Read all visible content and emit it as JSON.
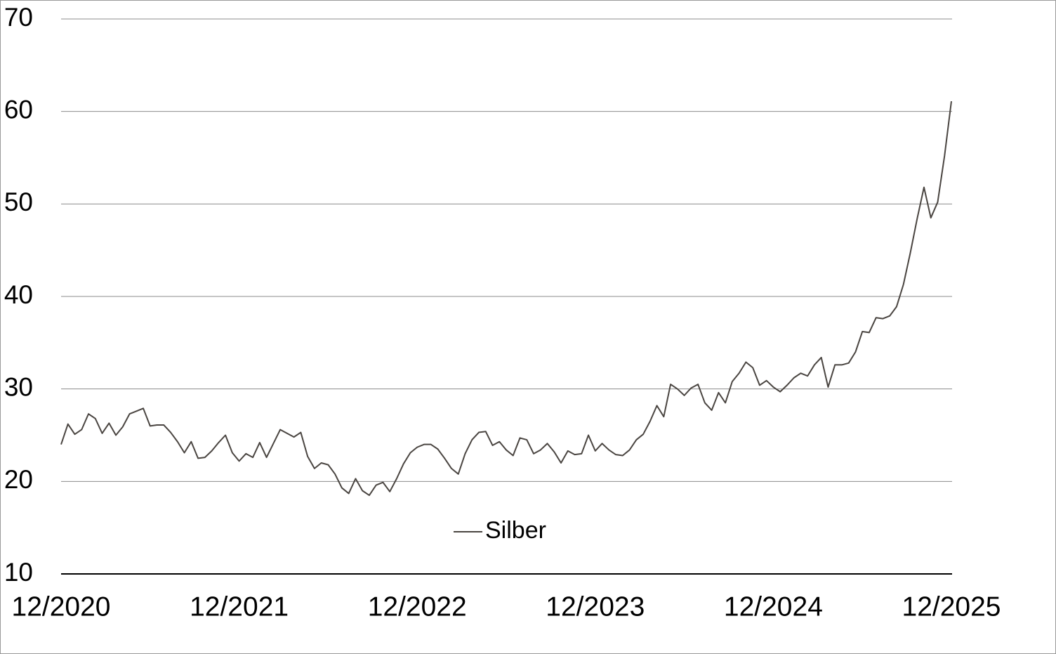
{
  "chart_data": {
    "type": "line",
    "categories": [
      "12/2020",
      null,
      null,
      null,
      null,
      null,
      null,
      null,
      null,
      null,
      null,
      null,
      null,
      null,
      null,
      null,
      null,
      null,
      null,
      null,
      null,
      null,
      null,
      null,
      null,
      null,
      "12/2021",
      null,
      null,
      null,
      null,
      null,
      null,
      null,
      null,
      null,
      null,
      null,
      null,
      null,
      null,
      null,
      null,
      null,
      null,
      null,
      null,
      null,
      null,
      null,
      null,
      null,
      "12/2022",
      null,
      null,
      null,
      null,
      null,
      null,
      null,
      null,
      null,
      null,
      null,
      null,
      null,
      null,
      null,
      null,
      null,
      null,
      null,
      null,
      null,
      null,
      null,
      null,
      null,
      "12/2023",
      null,
      null,
      null,
      null,
      null,
      null,
      null,
      null,
      null,
      null,
      null,
      null,
      null,
      null,
      null,
      null,
      null,
      null,
      null,
      null,
      null,
      null,
      null,
      null,
      null,
      "12/2024",
      null,
      null,
      null,
      null,
      null,
      null,
      null,
      null,
      null,
      null,
      null,
      null,
      null,
      null,
      null,
      null,
      null,
      null,
      null,
      null,
      null,
      null,
      null,
      null,
      null,
      "12/2025"
    ],
    "series": [
      {
        "name": "Silber",
        "color": "#4a4541",
        "values": [
          24.0,
          26.2,
          25.1,
          25.6,
          27.3,
          26.8,
          25.2,
          26.3,
          25.0,
          25.9,
          27.3,
          27.6,
          27.9,
          26.0,
          26.1,
          26.1,
          25.3,
          24.3,
          23.1,
          24.3,
          22.5,
          22.6,
          23.3,
          24.2,
          25.0,
          23.1,
          22.2,
          23.0,
          22.6,
          24.2,
          22.6,
          24.1,
          25.6,
          25.2,
          24.8,
          25.3,
          22.7,
          21.4,
          22.0,
          21.8,
          20.8,
          19.3,
          18.7,
          20.3,
          19.0,
          18.5,
          19.6,
          19.9,
          18.9,
          20.3,
          21.9,
          23.1,
          23.7,
          24.0,
          24.0,
          23.5,
          22.5,
          21.4,
          20.8,
          23.0,
          24.5,
          25.3,
          25.4,
          23.9,
          24.3,
          23.4,
          22.8,
          24.7,
          24.5,
          23.0,
          23.4,
          24.1,
          23.2,
          22.0,
          23.3,
          22.9,
          23.0,
          25.0,
          23.3,
          24.1,
          23.4,
          22.9,
          22.8,
          23.4,
          24.5,
          25.1,
          26.5,
          28.2,
          27.0,
          30.5,
          30.0,
          29.3,
          30.1,
          30.5,
          28.5,
          27.7,
          29.6,
          28.5,
          30.8,
          31.7,
          32.9,
          32.3,
          30.4,
          30.9,
          30.2,
          29.7,
          30.4,
          31.2,
          31.7,
          31.4,
          32.6,
          33.4,
          30.2,
          32.6,
          32.6,
          32.8,
          34.0,
          36.2,
          36.1,
          37.7,
          37.6,
          37.9,
          38.9,
          41.3,
          44.7,
          48.4,
          51.8,
          48.5,
          50.2,
          55.2,
          61.1
        ]
      }
    ],
    "ylim": [
      10,
      70
    ],
    "yticks": [
      10,
      20,
      30,
      40,
      50,
      60,
      70
    ],
    "grid": true,
    "legend": "bottom"
  }
}
